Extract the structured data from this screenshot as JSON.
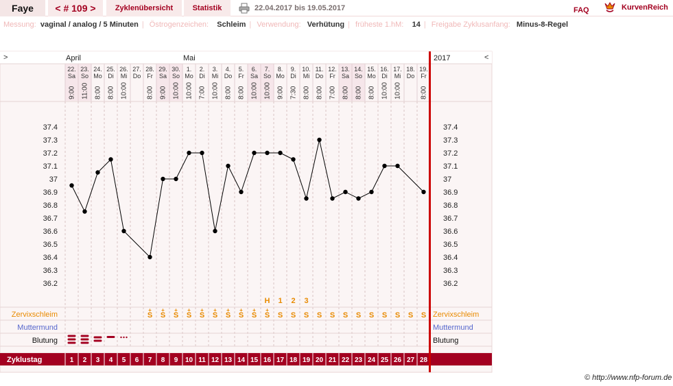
{
  "header": {
    "name": "Faye",
    "cycle": "< # 109 >",
    "overview": "Zyklenübersicht",
    "stats": "Statistik",
    "date_range": "22.04.2017 bis 19.05.2017",
    "faq": "FAQ",
    "brand": "KurvenReich"
  },
  "meta": [
    {
      "label": "Messung:",
      "value": "vaginal / analog / 5 Minuten"
    },
    {
      "label": "Östrogenzeichen:",
      "value": "Schleim"
    },
    {
      "label": "Verwendung:",
      "value": "Verhütung"
    },
    {
      "label": "früheste 1.hM:",
      "value": "14"
    },
    {
      "label": "Freigabe Zyklusanfang:",
      "value": "Minus-8-Regel"
    }
  ],
  "chart_data": {
    "type": "line",
    "prev_arrow": ">",
    "next_arrow": "<",
    "months": [
      {
        "label": "April",
        "day_index": 0
      },
      {
        "label": "Mai",
        "day_index": 9
      }
    ],
    "year": "2017",
    "days": [
      {
        "date": "22.",
        "dow": "Sa",
        "time": "9:00",
        "temp": 36.95,
        "mucus": "",
        "bleed": "heavy",
        "cd": "1",
        "weekend": true
      },
      {
        "date": "23.",
        "dow": "So",
        "time": "11:00",
        "temp": 36.75,
        "mucus": "",
        "bleed": "heavy",
        "cd": "2",
        "weekend": true
      },
      {
        "date": "24.",
        "dow": "Mo",
        "time": "8:00",
        "temp": 37.05,
        "mucus": "",
        "bleed": "medium",
        "cd": "3",
        "weekend": false
      },
      {
        "date": "25.",
        "dow": "Di",
        "time": "8:00",
        "temp": 37.15,
        "mucus": "",
        "bleed": "light",
        "cd": "4",
        "weekend": false
      },
      {
        "date": "26.",
        "dow": "Mi",
        "time": "10:00",
        "temp": 36.6,
        "mucus": "",
        "bleed": "spotting",
        "cd": "5",
        "weekend": false
      },
      {
        "date": "27.",
        "dow": "Do",
        "time": "",
        "temp": null,
        "mucus": "",
        "bleed": "",
        "cd": "6",
        "weekend": false
      },
      {
        "date": "28.",
        "dow": "Fr",
        "time": "8:00",
        "temp": 36.4,
        "mucus": "S+",
        "bleed": "",
        "cd": "7",
        "weekend": false
      },
      {
        "date": "29.",
        "dow": "Sa",
        "time": "9:00",
        "temp": 37.0,
        "mucus": "S+",
        "bleed": "",
        "cd": "8",
        "weekend": true
      },
      {
        "date": "30.",
        "dow": "So",
        "time": "10:00",
        "temp": 37.0,
        "mucus": "S+",
        "bleed": "",
        "cd": "9",
        "weekend": true
      },
      {
        "date": "1.",
        "dow": "Mo",
        "time": "10:00",
        "temp": 37.2,
        "mucus": "S+",
        "bleed": "",
        "cd": "10",
        "weekend": false
      },
      {
        "date": "2.",
        "dow": "Di",
        "time": "7:00",
        "temp": 37.2,
        "mucus": "S+",
        "bleed": "",
        "cd": "11",
        "weekend": false
      },
      {
        "date": "3.",
        "dow": "Mi",
        "time": "10:00",
        "temp": 36.6,
        "mucus": "S+",
        "bleed": "",
        "cd": "12",
        "weekend": false
      },
      {
        "date": "4.",
        "dow": "Do",
        "time": "8:00",
        "temp": 37.1,
        "mucus": "S+",
        "bleed": "",
        "cd": "13",
        "weekend": false
      },
      {
        "date": "5.",
        "dow": "Fr",
        "time": "8:00",
        "temp": 36.9,
        "mucus": "S+",
        "bleed": "",
        "cd": "14",
        "weekend": false
      },
      {
        "date": "6.",
        "dow": "Sa",
        "time": "10:00",
        "temp": 37.2,
        "mucus": "S+",
        "bleed": "",
        "cd": "15",
        "weekend": true
      },
      {
        "date": "7.",
        "dow": "So",
        "time": "10:00",
        "temp": 37.2,
        "mucus": "S+",
        "peak": "H",
        "bleed": "",
        "cd": "16",
        "weekend": true
      },
      {
        "date": "8.",
        "dow": "Mo",
        "time": "9:00",
        "temp": 37.2,
        "mucus": "S",
        "peak": "1",
        "bleed": "",
        "cd": "17",
        "weekend": false
      },
      {
        "date": "9.",
        "dow": "Di",
        "time": "7:30",
        "temp": 37.15,
        "mucus": "S",
        "peak": "2",
        "bleed": "",
        "cd": "18",
        "weekend": false
      },
      {
        "date": "10.",
        "dow": "Mi",
        "time": "8:00",
        "temp": 36.85,
        "mucus": "S",
        "peak": "3",
        "bleed": "",
        "cd": "19",
        "weekend": false
      },
      {
        "date": "11.",
        "dow": "Do",
        "time": "8:00",
        "temp": 37.3,
        "mucus": "S",
        "bleed": "",
        "cd": "20",
        "weekend": false
      },
      {
        "date": "12.",
        "dow": "Fr",
        "time": "7:00",
        "temp": 36.85,
        "mucus": "S",
        "bleed": "",
        "cd": "21",
        "weekend": false
      },
      {
        "date": "13.",
        "dow": "Sa",
        "time": "8:00",
        "temp": 36.9,
        "mucus": "S",
        "bleed": "",
        "cd": "22",
        "weekend": true
      },
      {
        "date": "14.",
        "dow": "So",
        "time": "8:00",
        "temp": 36.85,
        "mucus": "S",
        "bleed": "",
        "cd": "23",
        "weekend": true
      },
      {
        "date": "15.",
        "dow": "Mo",
        "time": "8:00",
        "temp": 36.9,
        "mucus": "S",
        "bleed": "",
        "cd": "24",
        "weekend": false
      },
      {
        "date": "16.",
        "dow": "Di",
        "time": "10:00",
        "temp": 37.1,
        "mucus": "S",
        "bleed": "",
        "cd": "25",
        "weekend": false
      },
      {
        "date": "17.",
        "dow": "Mi",
        "time": "10:00",
        "temp": 37.1,
        "mucus": "S",
        "bleed": "",
        "cd": "26",
        "weekend": false
      },
      {
        "date": "18.",
        "dow": "Do",
        "time": "",
        "temp": null,
        "mucus": "S",
        "bleed": "",
        "cd": "27",
        "weekend": false
      },
      {
        "date": "19.",
        "dow": "Fr",
        "time": "8:00",
        "temp": 36.9,
        "mucus": "S",
        "bleed": "",
        "cd": "28",
        "weekend": false
      }
    ],
    "yticks": [
      "37.4",
      "37.3",
      "37.2",
      "37.1",
      "37",
      "36.9",
      "36.8",
      "36.7",
      "36.6",
      "36.5",
      "36.4",
      "36.3",
      "36.2"
    ],
    "ylim": [
      36.2,
      37.4
    ],
    "rows": {
      "mucus": "Zervixschleim",
      "cervix": "Muttermund",
      "bleed": "Blutung",
      "cycle_day": "Zyklustag"
    },
    "colors": {
      "accent": "#a30020",
      "mucus": "#e88a00",
      "cervix": "#5566cc",
      "weekend": "#f6e6ea",
      "grid_bg": "#fbf5f5"
    }
  },
  "copyright": "© http://www.nfp-forum.de"
}
